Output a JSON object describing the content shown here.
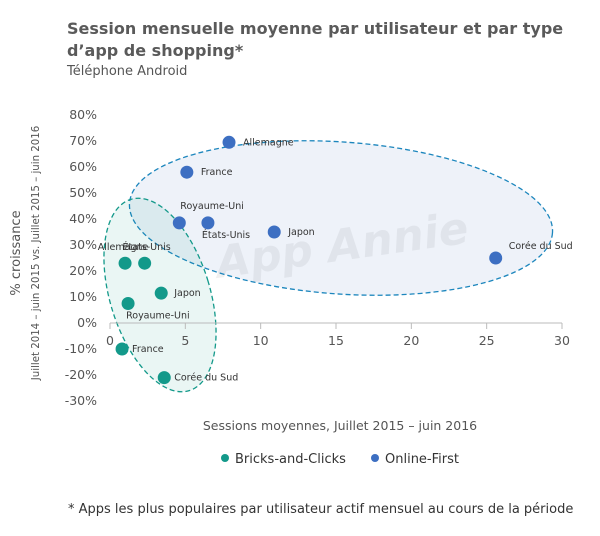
{
  "title": "Session mensuelle moyenne par utilisateur et par type d’app de shopping*",
  "subtitle": "Téléphone Android",
  "footnote": "* Apps les plus populaires par utilisateur actif mensuel au cours de la période",
  "watermark": "App Annie",
  "chart_data": {
    "type": "scatter",
    "xlabel": "Sessions moyennes, Juillet 2015 – juin 2016",
    "ylabel": "% croissance",
    "ylabel_sub": "Juillet 2014 – juin 2015 vs. Juillet 2015 – juin 2016",
    "xlim": [
      0,
      30
    ],
    "ylim": [
      -30,
      80
    ],
    "xticks": [
      "0",
      "5",
      "10",
      "15",
      "20",
      "25",
      "30"
    ],
    "yticks": [
      "80%",
      "70%",
      "60%",
      "50%",
      "40%",
      "30%",
      "20%",
      "10%",
      "0%",
      "-10%",
      "-20%",
      "-30%"
    ],
    "legend_position": "bottom",
    "series": [
      {
        "name": "Bricks-and-Clicks",
        "color": "#13998a",
        "points": [
          {
            "label": "Allemagne",
            "x": 1.0,
            "y": 23
          },
          {
            "label": "États-Unis",
            "x": 2.3,
            "y": 23
          },
          {
            "label": "Japon",
            "x": 3.4,
            "y": 11.5
          },
          {
            "label": "Royaume-Uni",
            "x": 1.2,
            "y": 7.5
          },
          {
            "label": "France",
            "x": 0.8,
            "y": -10
          },
          {
            "label": "Corée du Sud",
            "x": 3.6,
            "y": -21
          }
        ]
      },
      {
        "name": "Online-First",
        "color": "#3d6fc2",
        "points": [
          {
            "label": "Allemagne",
            "x": 7.9,
            "y": 69.5
          },
          {
            "label": "France",
            "x": 5.1,
            "y": 58
          },
          {
            "label": "Royaume-Uni",
            "x": 4.6,
            "y": 38.5
          },
          {
            "label": "États-Unis",
            "x": 6.5,
            "y": 38.5
          },
          {
            "label": "Japon",
            "x": 10.9,
            "y": 35
          },
          {
            "label": "Corée du Sud",
            "x": 25.6,
            "y": 25
          }
        ]
      }
    ]
  }
}
